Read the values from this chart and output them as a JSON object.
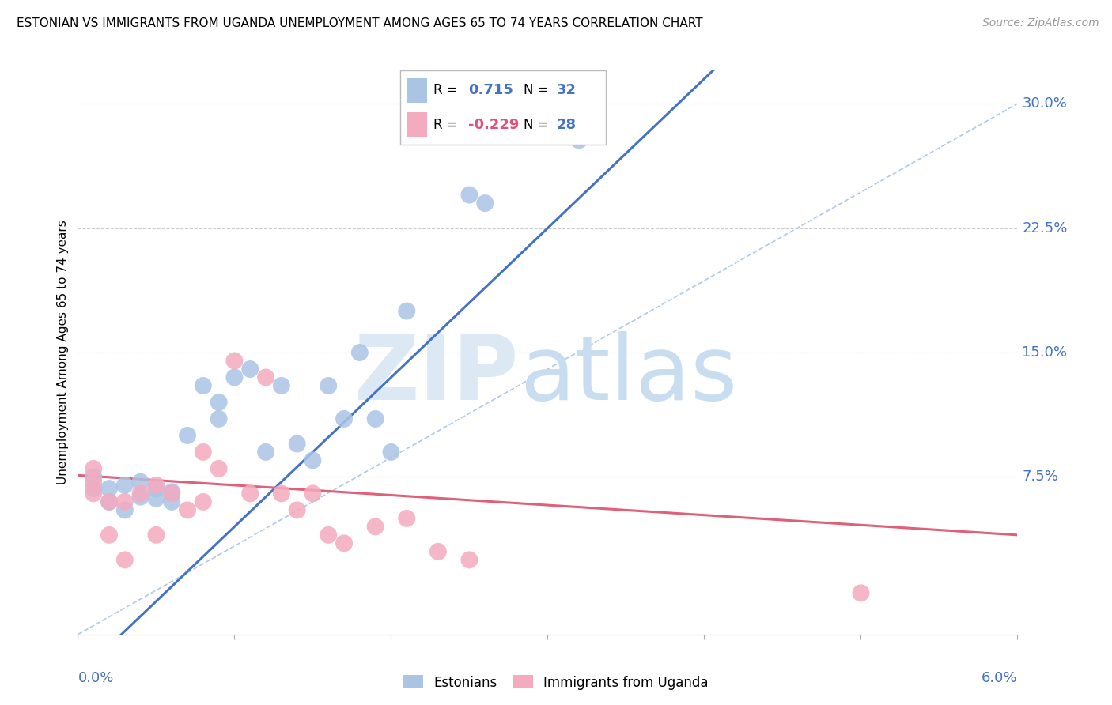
{
  "title": "ESTONIAN VS IMMIGRANTS FROM UGANDA UNEMPLOYMENT AMONG AGES 65 TO 74 YEARS CORRELATION CHART",
  "source": "Source: ZipAtlas.com",
  "ylabel": "Unemployment Among Ages 65 to 74 years",
  "ytick_labels": [
    "7.5%",
    "15.0%",
    "22.5%",
    "30.0%"
  ],
  "ytick_values": [
    0.075,
    0.15,
    0.225,
    0.3
  ],
  "xlim": [
    0.0,
    0.06
  ],
  "ylim": [
    -0.02,
    0.32
  ],
  "legend_blue_r": "0.715",
  "legend_blue_n": "32",
  "legend_pink_r": "-0.229",
  "legend_pink_n": "28",
  "legend_label_blue": "Estonians",
  "legend_label_pink": "Immigrants from Uganda",
  "blue_color": "#aac4e4",
  "pink_color": "#f4aabf",
  "line_blue_color": "#4472c4",
  "line_pink_color": "#e0607a",
  "blue_scatter_x": [
    0.001,
    0.001,
    0.002,
    0.002,
    0.003,
    0.003,
    0.004,
    0.004,
    0.005,
    0.005,
    0.006,
    0.006,
    0.007,
    0.008,
    0.009,
    0.009,
    0.01,
    0.011,
    0.012,
    0.013,
    0.014,
    0.015,
    0.016,
    0.017,
    0.018,
    0.019,
    0.02,
    0.021,
    0.025,
    0.026,
    0.03,
    0.032
  ],
  "blue_scatter_y": [
    0.068,
    0.075,
    0.06,
    0.068,
    0.055,
    0.07,
    0.063,
    0.072,
    0.062,
    0.068,
    0.06,
    0.066,
    0.1,
    0.13,
    0.11,
    0.12,
    0.135,
    0.14,
    0.09,
    0.13,
    0.095,
    0.085,
    0.13,
    0.11,
    0.15,
    0.11,
    0.09,
    0.175,
    0.245,
    0.24,
    0.282,
    0.278
  ],
  "pink_scatter_x": [
    0.001,
    0.001,
    0.001,
    0.002,
    0.002,
    0.003,
    0.003,
    0.004,
    0.005,
    0.005,
    0.006,
    0.007,
    0.008,
    0.008,
    0.009,
    0.01,
    0.011,
    0.012,
    0.013,
    0.014,
    0.015,
    0.016,
    0.017,
    0.019,
    0.021,
    0.023,
    0.025,
    0.05
  ],
  "pink_scatter_y": [
    0.065,
    0.072,
    0.08,
    0.04,
    0.06,
    0.025,
    0.06,
    0.065,
    0.07,
    0.04,
    0.065,
    0.055,
    0.06,
    0.09,
    0.08,
    0.145,
    0.065,
    0.135,
    0.065,
    0.055,
    0.065,
    0.04,
    0.035,
    0.045,
    0.05,
    0.03,
    0.025,
    0.005
  ],
  "diag_color": "#b0c8e8",
  "grid_color": "#cccccc"
}
